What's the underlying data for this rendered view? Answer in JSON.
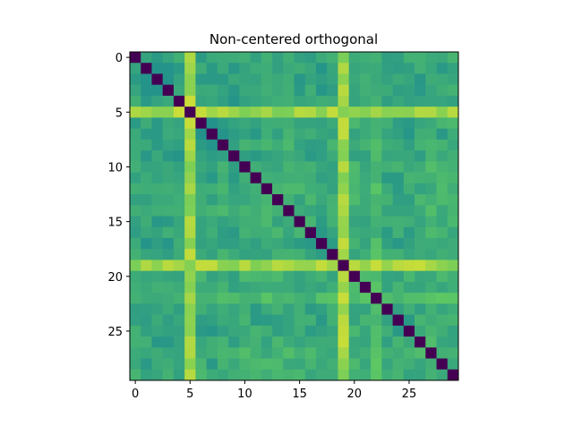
{
  "chart_data": {
    "type": "heatmap",
    "title": "Non-centered orthogonal",
    "xlabel": "",
    "ylabel": "",
    "n_rows": 30,
    "n_cols": 30,
    "xlim": [
      -0.5,
      29.5
    ],
    "ylim": [
      29.5,
      -0.5
    ],
    "x_ticks": [
      0,
      5,
      10,
      15,
      20,
      25
    ],
    "y_ticks": [
      0,
      5,
      10,
      15,
      20,
      25
    ],
    "colormap": "viridis",
    "value_range": [
      0,
      1
    ],
    "diagonal_value": 0,
    "grid": false,
    "legend": "none",
    "row_levels": [
      0.58,
      0.55,
      0.55,
      0.56,
      0.57,
      0.82,
      0.58,
      0.54,
      0.6,
      0.58,
      0.63,
      0.6,
      0.62,
      0.64,
      0.66,
      0.62,
      0.6,
      0.58,
      0.62,
      0.84,
      0.66,
      0.62,
      0.74,
      0.6,
      0.58,
      0.6,
      0.62,
      0.66,
      0.64,
      0.66
    ],
    "matrix_note": "off-diagonal values approximately mean of row_levels[i] and row_levels[j] with small variation",
    "palette_stops": [
      "#440154",
      "#3b528b",
      "#21918c",
      "#5ec962",
      "#fde725"
    ]
  }
}
